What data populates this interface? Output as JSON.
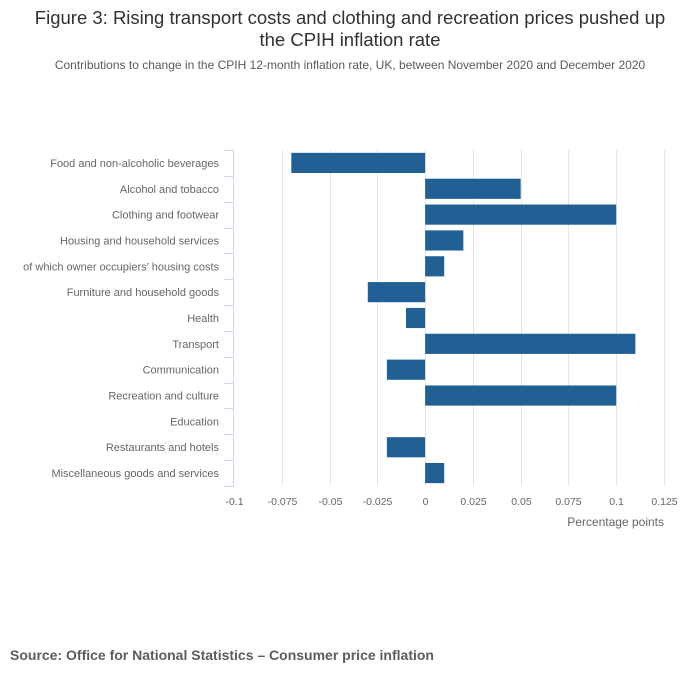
{
  "title": "Figure 3: Rising transport costs and clothing and recreation prices pushed up the CPIH inflation rate",
  "subtitle": "Contributions to change in the CPIH 12-month inflation rate, UK, between November 2020 and December 2020",
  "source": "Source: Office for National Statistics – Consumer price inflation",
  "colors": {
    "bar": "#206095",
    "grid": "#e6e6e6",
    "axis": "#ccd6eb",
    "label": "#666666"
  },
  "chart_data": {
    "type": "bar",
    "orientation": "horizontal",
    "categories": [
      "Food and non-alcoholic beverages",
      "Alcohol and tobacco",
      "Clothing and footwear",
      "Housing and household services",
      "of which owner occupiers’ housing costs",
      "Furniture and household goods",
      "Health",
      "Transport",
      "Communication",
      "Recreation and culture",
      "Education",
      "Restaurants and hotels",
      "Miscellaneous goods and services"
    ],
    "values": [
      -0.07,
      0.05,
      0.1,
      0.02,
      0.01,
      -0.03,
      -0.01,
      0.11,
      -0.02,
      0.1,
      0,
      -0.02,
      0.01
    ],
    "xlim": [
      -0.1,
      0.125
    ],
    "xticks": [
      -0.1,
      -0.075,
      -0.05,
      -0.025,
      0,
      0.025,
      0.05,
      0.075,
      0.1,
      0.125
    ],
    "xtick_labels": [
      "-0.1",
      "-0.075",
      "-0.05",
      "-0.025",
      "0",
      "0.025",
      "0.05",
      "0.075",
      "0.1",
      "0.125"
    ],
    "xlabel": "Percentage points",
    "ylabel": "",
    "grid": true,
    "legend": "none"
  }
}
